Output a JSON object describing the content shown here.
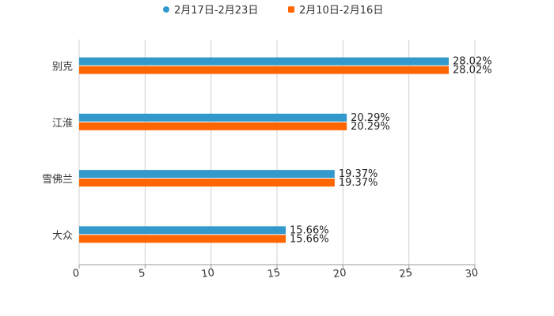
{
  "chart_data": {
    "type": "bar",
    "orientation": "horizontal",
    "categories": [
      "别克",
      "江淮",
      "雪佛兰",
      "大众"
    ],
    "series": [
      {
        "name": "2月17日-2月23日",
        "color": "#3399cc",
        "values": [
          28.02,
          20.29,
          19.37,
          15.66
        ],
        "labels": [
          "28.02%",
          "20.29%",
          "19.37%",
          "15.66%"
        ]
      },
      {
        "name": "2月10日-2月16日",
        "color": "#ff6600",
        "values": [
          28.02,
          20.29,
          19.37,
          15.66
        ],
        "labels": [
          "28.02%",
          "20.29%",
          "19.37%",
          "15.66%"
        ]
      }
    ],
    "xlim": [
      0,
      30
    ],
    "xticks": [
      "0",
      "5",
      "10",
      "15",
      "20",
      "25",
      "30"
    ],
    "grid": true,
    "legend": "top-center",
    "title": "",
    "xlabel": "",
    "ylabel": ""
  }
}
